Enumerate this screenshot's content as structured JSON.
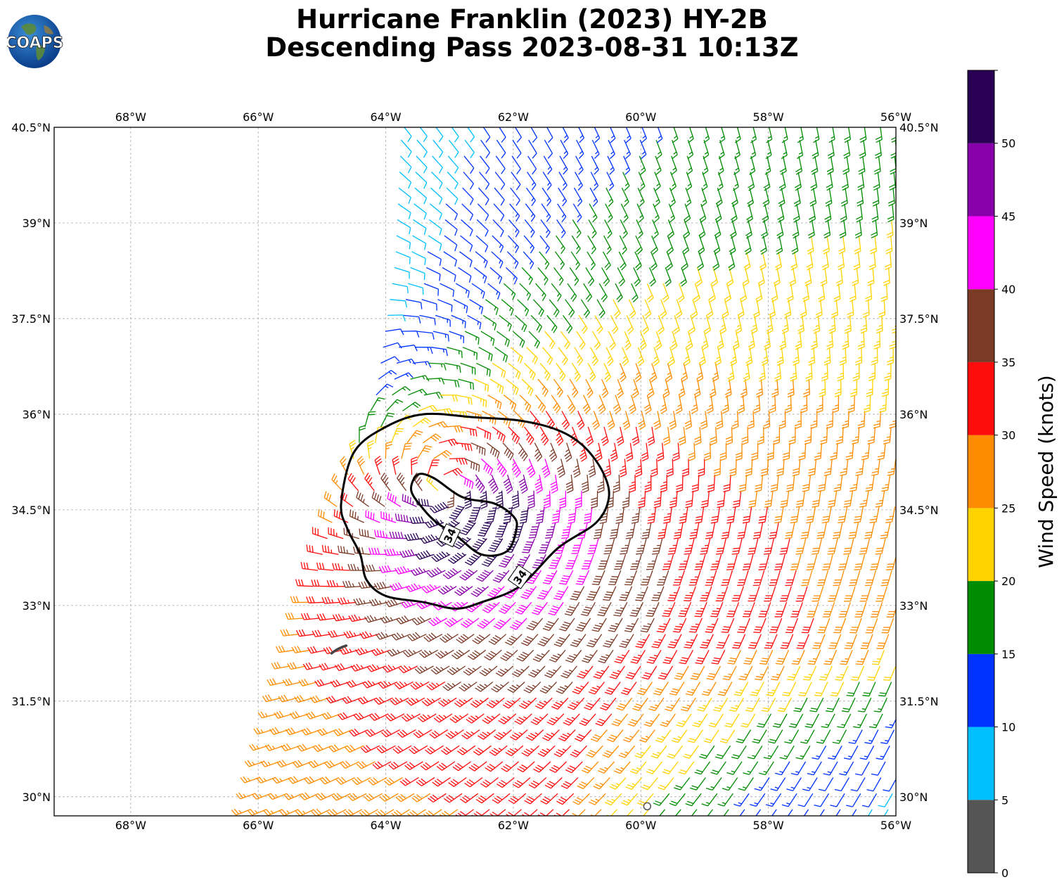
{
  "title": {
    "line1": "Hurricane Franklin (2023) HY-2B",
    "line2": "Descending Pass 2023-08-31 10:13Z"
  },
  "logo": {
    "text": "COAPS",
    "icon": "globe-icon"
  },
  "map": {
    "lon_range": [
      -69.2,
      -56.0
    ],
    "lat_range": [
      29.7,
      40.5
    ],
    "lon_ticks": [
      {
        "value": -68,
        "label": "68°W"
      },
      {
        "value": -66,
        "label": "66°W"
      },
      {
        "value": -64,
        "label": "64°W"
      },
      {
        "value": -62,
        "label": "62°W"
      },
      {
        "value": -60,
        "label": "60°W"
      },
      {
        "value": -58,
        "label": "58°W"
      },
      {
        "value": -56,
        "label": "56°W"
      }
    ],
    "lat_ticks": [
      {
        "value": 40.5,
        "label": "40.5°N"
      },
      {
        "value": 39,
        "label": "39°N"
      },
      {
        "value": 37.5,
        "label": "37.5°N"
      },
      {
        "value": 36,
        "label": "36°N"
      },
      {
        "value": 34.5,
        "label": "34.5°N"
      },
      {
        "value": 33,
        "label": "33°N"
      },
      {
        "value": 31.5,
        "label": "31.5°N"
      },
      {
        "value": 30,
        "label": "30°N"
      }
    ],
    "grid": true,
    "island": "Bermuda",
    "storm_center": {
      "lon": -63.0,
      "lat": 34.8
    },
    "contour_34kt": {
      "level_label": "34",
      "outer": [
        [
          -64.5,
          35.4
        ],
        [
          -64.0,
          35.8
        ],
        [
          -63.4,
          36.0
        ],
        [
          -62.6,
          35.95
        ],
        [
          -61.9,
          35.9
        ],
        [
          -61.3,
          35.75
        ],
        [
          -60.9,
          35.5
        ],
        [
          -60.6,
          35.1
        ],
        [
          -60.5,
          34.7
        ],
        [
          -60.7,
          34.3
        ],
        [
          -61.3,
          33.9
        ],
        [
          -61.9,
          33.3
        ],
        [
          -62.5,
          33.05
        ],
        [
          -62.9,
          32.95
        ],
        [
          -63.4,
          33.05
        ],
        [
          -64.0,
          33.15
        ],
        [
          -64.3,
          33.4
        ],
        [
          -64.4,
          33.8
        ],
        [
          -64.6,
          34.2
        ],
        [
          -64.7,
          34.6
        ]
      ],
      "inner": [
        [
          -63.4,
          34.5
        ],
        [
          -63.2,
          34.3
        ],
        [
          -62.9,
          34.1
        ],
        [
          -62.5,
          33.8
        ],
        [
          -62.1,
          33.85
        ],
        [
          -61.95,
          34.2
        ],
        [
          -62.0,
          34.4
        ],
        [
          -62.3,
          34.6
        ],
        [
          -62.8,
          34.7
        ],
        [
          -63.25,
          35.0
        ],
        [
          -63.5,
          35.05
        ],
        [
          -63.6,
          34.8
        ]
      ]
    },
    "swath": {
      "west_edge": [
        [
          -66.2,
          29.7
        ],
        [
          -65.4,
          32.6
        ],
        [
          -64.8,
          34.6
        ],
        [
          -64.2,
          36.3
        ],
        [
          -63.9,
          38.4
        ],
        [
          -63.8,
          40.5
        ]
      ],
      "east_edge_lon": -56.0
    },
    "calm_marker": {
      "lon": -59.9,
      "lat": 29.85
    }
  },
  "colorbar": {
    "label": "Wind Speed (knots)",
    "bins": [
      {
        "min": 0,
        "max": 5,
        "color": "#555555"
      },
      {
        "min": 5,
        "max": 10,
        "color": "#00bfff"
      },
      {
        "min": 10,
        "max": 15,
        "color": "#0033ff"
      },
      {
        "min": 15,
        "max": 20,
        "color": "#008c00"
      },
      {
        "min": 20,
        "max": 25,
        "color": "#ffd300"
      },
      {
        "min": 25,
        "max": 30,
        "color": "#ff8c00"
      },
      {
        "min": 30,
        "max": 35,
        "color": "#ff0d0d"
      },
      {
        "min": 35,
        "max": 40,
        "color": "#7b3a26"
      },
      {
        "min": 40,
        "max": 45,
        "color": "#ff00ff"
      },
      {
        "min": 45,
        "max": 50,
        "color": "#8800aa"
      },
      {
        "min": 50,
        "max": 55,
        "color": "#2a0055"
      }
    ],
    "ticks": [
      "0",
      "5",
      "10",
      "15",
      "20",
      "25",
      "30",
      "35",
      "40",
      "45",
      "50"
    ]
  }
}
